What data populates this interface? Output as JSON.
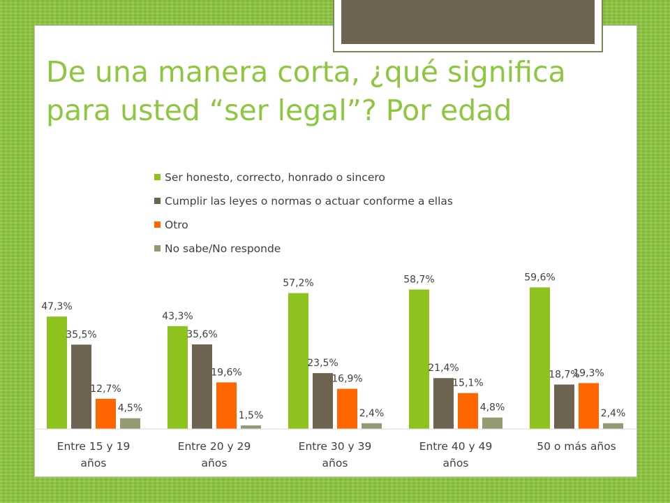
{
  "slide": {
    "title": "De una manera corta, ¿qué significa para usted “ser legal”? Por edad"
  },
  "colors": {
    "background": "#8dc63f",
    "title": "#8dc63f",
    "deco_block": "#6d6350"
  },
  "chart_data": {
    "type": "bar",
    "title": "",
    "xlabel": "",
    "ylabel": "",
    "ylim": [
      0,
      70
    ],
    "grid": false,
    "legend_position": "top",
    "categories": [
      [
        "Entre 15 y 19",
        "años"
      ],
      [
        "Entre 20 y 29",
        "años"
      ],
      [
        "Entre 30 y 39",
        "años"
      ],
      [
        "Entre 40 y 49",
        "años"
      ],
      [
        "50 o más años"
      ]
    ],
    "series": [
      {
        "name": "Ser honesto, correcto, honrado o sincero",
        "color": "#8dc21f",
        "values": [
          47.3,
          43.3,
          57.2,
          58.7,
          59.6
        ],
        "labels": [
          "47,3%",
          "43,3%",
          "57,2%",
          "58,7%",
          "59,6%"
        ]
      },
      {
        "name": "Cumplir las leyes o normas o actuar conforme a ellas",
        "color": "#6d6350",
        "values": [
          35.5,
          35.6,
          23.5,
          21.4,
          18.7
        ],
        "labels": [
          "35,5%",
          "35,6%",
          "23,5%",
          "21,4%",
          "18,7%"
        ]
      },
      {
        "name": "Otro",
        "color": "#ff6600",
        "values": [
          12.7,
          19.6,
          16.9,
          15.1,
          19.3
        ],
        "labels": [
          "12,7%",
          "19,6%",
          "16,9%",
          "15,1%",
          "19,3%"
        ]
      },
      {
        "name": "No sabe/No responde",
        "color": "#949a72",
        "values": [
          4.5,
          1.5,
          2.4,
          4.8,
          2.4
        ],
        "labels": [
          "4,5%",
          "1,5%",
          "2,4%",
          "4,8%",
          "2,4%"
        ]
      }
    ]
  }
}
